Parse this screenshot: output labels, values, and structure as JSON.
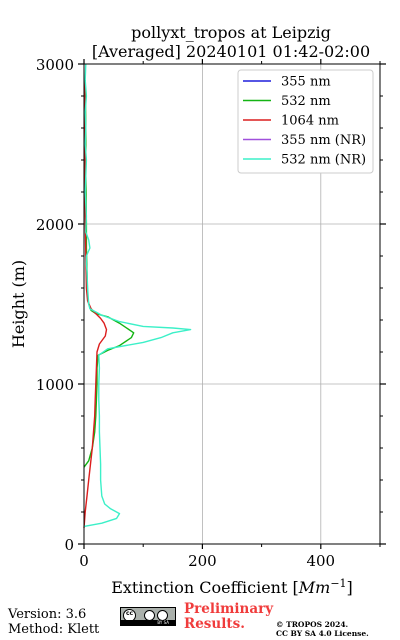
{
  "chart_data": {
    "type": "line",
    "title": "pollyxt_tropos at Leipzig",
    "subtitle": "[Averaged] 20240101 01:42-02:00",
    "xlabel": "Extinction Coefficient [",
    "xlabel_unit": "Mm",
    "xlabel_exp": "−1",
    "xlabel_close": "]",
    "ylabel": "Height (m)",
    "xlim": [
      0,
      500
    ],
    "ylim": [
      0,
      3000
    ],
    "xticks": [
      0,
      200,
      400
    ],
    "yticks": [
      0,
      1000,
      2000,
      3000
    ],
    "grid": true,
    "legend_position": "top-right",
    "series": [
      {
        "name": "355 nm",
        "color": "#1f1fdc",
        "points": []
      },
      {
        "name": "532 nm",
        "color": "#14b414",
        "points": [
          [
            0,
            480
          ],
          [
            8,
            520
          ],
          [
            14,
            600
          ],
          [
            18,
            700
          ],
          [
            20,
            800
          ],
          [
            21,
            900
          ],
          [
            22,
            1000
          ],
          [
            22,
            1100
          ],
          [
            24,
            1180
          ],
          [
            40,
            1210
          ],
          [
            60,
            1240
          ],
          [
            80,
            1290
          ],
          [
            84,
            1320
          ],
          [
            60,
            1380
          ],
          [
            40,
            1420
          ],
          [
            20,
            1440
          ],
          [
            12,
            1460
          ],
          [
            8,
            1500
          ],
          [
            6,
            1550
          ],
          [
            5,
            1700
          ],
          [
            4,
            1850
          ],
          [
            4,
            2000
          ],
          [
            3,
            2300
          ],
          [
            3,
            2600
          ],
          [
            2,
            2900
          ]
        ]
      },
      {
        "name": "1064 nm",
        "color": "#dc1e1e",
        "points": [
          [
            0,
            100
          ],
          [
            2,
            200
          ],
          [
            5,
            300
          ],
          [
            8,
            400
          ],
          [
            11,
            500
          ],
          [
            14,
            600
          ],
          [
            16,
            700
          ],
          [
            18,
            800
          ],
          [
            19,
            900
          ],
          [
            20,
            1000
          ],
          [
            21,
            1100
          ],
          [
            22,
            1200
          ],
          [
            26,
            1250
          ],
          [
            36,
            1300
          ],
          [
            38,
            1340
          ],
          [
            34,
            1380
          ],
          [
            28,
            1410
          ],
          [
            20,
            1440
          ],
          [
            12,
            1470
          ],
          [
            6,
            1520
          ],
          [
            4,
            1600
          ],
          [
            3,
            1800
          ],
          [
            2,
            2100
          ],
          [
            2,
            2500
          ],
          [
            1,
            2900
          ]
        ]
      },
      {
        "name": "355 nm (NR)",
        "color": "#a050dc",
        "points": []
      },
      {
        "name": "532 nm (NR)",
        "color": "#3cf0c8",
        "points": [
          [
            0,
            110
          ],
          [
            30,
            130
          ],
          [
            55,
            160
          ],
          [
            60,
            190
          ],
          [
            45,
            220
          ],
          [
            35,
            250
          ],
          [
            30,
            300
          ],
          [
            28,
            400
          ],
          [
            28,
            500
          ],
          [
            27,
            600
          ],
          [
            26,
            700
          ],
          [
            26,
            800
          ],
          [
            25,
            900
          ],
          [
            25,
            1000
          ],
          [
            26,
            1100
          ],
          [
            25,
            1180
          ],
          [
            40,
            1220
          ],
          [
            100,
            1260
          ],
          [
            130,
            1290
          ],
          [
            150,
            1320
          ],
          [
            180,
            1340
          ],
          [
            150,
            1350
          ],
          [
            100,
            1360
          ],
          [
            60,
            1390
          ],
          [
            30,
            1430
          ],
          [
            10,
            1470
          ],
          [
            8,
            1500
          ],
          [
            6,
            1600
          ],
          [
            5,
            1700
          ],
          [
            4,
            1750
          ],
          [
            4,
            1800
          ],
          [
            10,
            1850
          ],
          [
            8,
            1900
          ],
          [
            3,
            1950
          ],
          [
            4,
            2050
          ],
          [
            2,
            2200
          ],
          [
            3,
            2300
          ],
          [
            4,
            2400
          ],
          [
            2,
            2500
          ],
          [
            3,
            2600
          ],
          [
            2,
            2700
          ],
          [
            4,
            2800
          ],
          [
            2,
            2900
          ],
          [
            3,
            3000
          ]
        ]
      }
    ]
  },
  "footer": {
    "version": "Version: 3.6",
    "method": "Method: Klett",
    "preliminary_line1": "Preliminary",
    "preliminary_line2": "Results.",
    "copyright_line1": "© TROPOS 2024.",
    "copyright_line2": "CC BY SA 4.0 License."
  },
  "license_badge": {
    "cc": "cc",
    "by": "BY",
    "sa": "SA"
  }
}
